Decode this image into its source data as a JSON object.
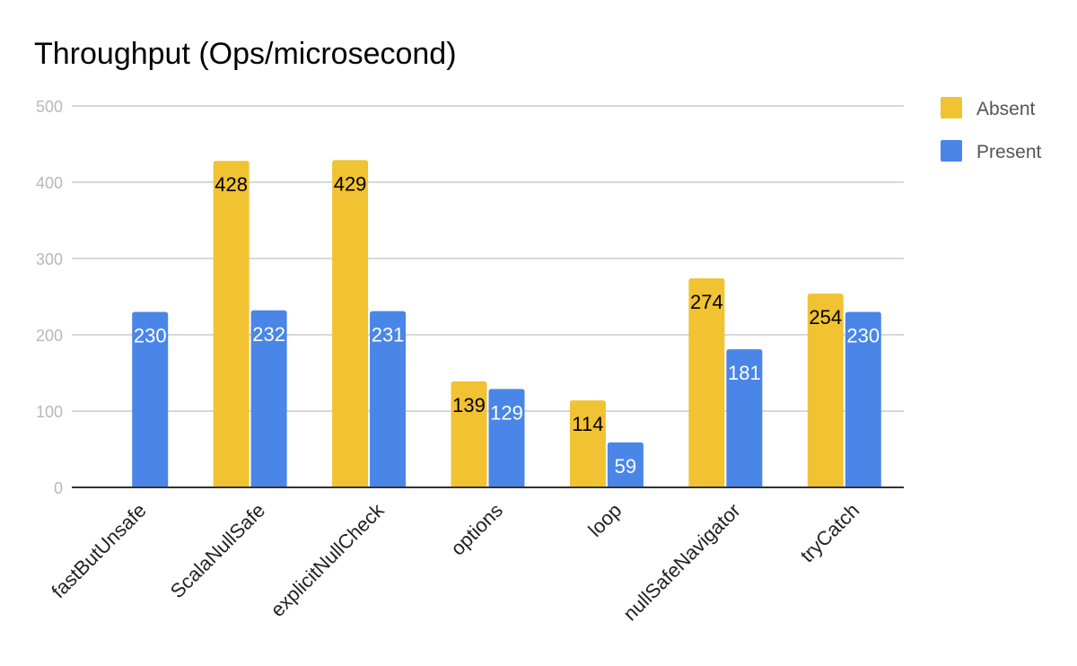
{
  "chart_data": {
    "type": "bar",
    "title": "Throughput (Ops/microsecond)",
    "xlabel": "",
    "ylabel": "",
    "ylim": [
      0,
      500
    ],
    "yticks": [
      0,
      100,
      200,
      300,
      400,
      500
    ],
    "grid": true,
    "legend_position": "right",
    "categories": [
      "fastButUnsafe",
      "ScalaNullSafe",
      "explicitNullCheck",
      "options",
      "loop",
      "nullSafeNavigator",
      "tryCatch"
    ],
    "series": [
      {
        "name": "Absent",
        "color": "#f1c232",
        "label_color": "#000000",
        "values": [
          null,
          428,
          429,
          139,
          114,
          274,
          254
        ],
        "labels": [
          "",
          "428",
          "429",
          "139",
          "114",
          "274",
          "254"
        ]
      },
      {
        "name": "Present",
        "color": "#4a86e8",
        "label_color": "#ffffff",
        "values": [
          230,
          232,
          231,
          129,
          59,
          181,
          230
        ],
        "labels": [
          "230",
          "232",
          "231",
          "129",
          "59",
          "181",
          "230"
        ]
      }
    ]
  }
}
